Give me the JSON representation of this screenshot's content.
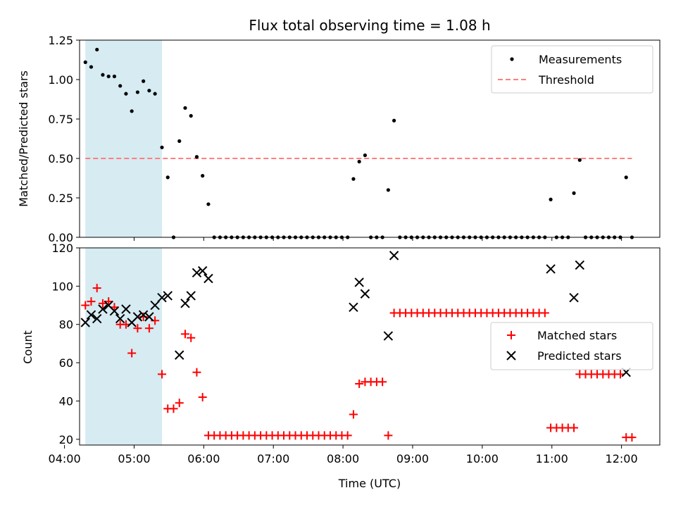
{
  "chart_data": [
    {
      "type": "scatter",
      "title": "Flux total observing time = 1.08 h",
      "xlabel": "",
      "ylabel": "Matched/Predicted stars",
      "ylim": [
        0,
        1.25
      ],
      "yticks": [
        "0.00",
        "0.25",
        "0.50",
        "0.75",
        "1.00",
        "1.25"
      ],
      "xlim": [
        "04:13",
        "12:33"
      ],
      "shaded_span": [
        "04:18",
        "05:24"
      ],
      "shade_color": "#add8e6",
      "legend": {
        "position": "top-right",
        "entries": [
          "Measurements",
          "Threshold"
        ]
      },
      "series": [
        {
          "name": "Measurements",
          "marker": "dot",
          "color": "#000000",
          "points": [
            [
              "04:18",
              1.11
            ],
            [
              "04:23",
              1.08
            ],
            [
              "04:28",
              1.19
            ],
            [
              "04:33",
              1.03
            ],
            [
              "04:38",
              1.02
            ],
            [
              "04:43",
              1.02
            ],
            [
              "04:48",
              0.96
            ],
            [
              "04:53",
              0.91
            ],
            [
              "04:58",
              0.8
            ],
            [
              "05:03",
              0.92
            ],
            [
              "05:08",
              0.99
            ],
            [
              "05:13",
              0.93
            ],
            [
              "05:18",
              0.91
            ],
            [
              "05:24",
              0.57
            ],
            [
              "05:29",
              0.38
            ],
            [
              "05:34",
              0.0
            ],
            [
              "05:39",
              0.61
            ],
            [
              "05:44",
              0.82
            ],
            [
              "05:49",
              0.77
            ],
            [
              "05:54",
              0.51
            ],
            [
              "05:59",
              0.39
            ],
            [
              "06:04",
              0.21
            ],
            [
              "06:09",
              0.0
            ],
            [
              "06:14",
              0.0
            ],
            [
              "06:19",
              0.0
            ],
            [
              "06:24",
              0.0
            ],
            [
              "06:29",
              0.0
            ],
            [
              "06:34",
              0.0
            ],
            [
              "06:39",
              0.0
            ],
            [
              "06:44",
              0.0
            ],
            [
              "06:49",
              0.0
            ],
            [
              "06:54",
              0.0
            ],
            [
              "06:59",
              0.0
            ],
            [
              "07:04",
              0.0
            ],
            [
              "07:09",
              0.0
            ],
            [
              "07:14",
              0.0
            ],
            [
              "07:19",
              0.0
            ],
            [
              "07:24",
              0.0
            ],
            [
              "07:29",
              0.0
            ],
            [
              "07:34",
              0.0
            ],
            [
              "07:39",
              0.0
            ],
            [
              "07:44",
              0.0
            ],
            [
              "07:49",
              0.0
            ],
            [
              "07:54",
              0.0
            ],
            [
              "07:59",
              0.0
            ],
            [
              "08:04",
              0.0
            ],
            [
              "08:09",
              0.37
            ],
            [
              "08:14",
              0.48
            ],
            [
              "08:19",
              0.52
            ],
            [
              "08:24",
              0.0
            ],
            [
              "08:29",
              0.0
            ],
            [
              "08:34",
              0.0
            ],
            [
              "08:39",
              0.3
            ],
            [
              "08:44",
              0.74
            ],
            [
              "08:49",
              0.0
            ],
            [
              "08:54",
              0.0
            ],
            [
              "08:59",
              0.0
            ],
            [
              "09:04",
              0.0
            ],
            [
              "09:09",
              0.0
            ],
            [
              "09:14",
              0.0
            ],
            [
              "09:19",
              0.0
            ],
            [
              "09:24",
              0.0
            ],
            [
              "09:29",
              0.0
            ],
            [
              "09:34",
              0.0
            ],
            [
              "09:39",
              0.0
            ],
            [
              "09:44",
              0.0
            ],
            [
              "09:49",
              0.0
            ],
            [
              "09:54",
              0.0
            ],
            [
              "09:59",
              0.0
            ],
            [
              "10:04",
              0.0
            ],
            [
              "10:09",
              0.0
            ],
            [
              "10:14",
              0.0
            ],
            [
              "10:19",
              0.0
            ],
            [
              "10:24",
              0.0
            ],
            [
              "10:29",
              0.0
            ],
            [
              "10:34",
              0.0
            ],
            [
              "10:39",
              0.0
            ],
            [
              "10:44",
              0.0
            ],
            [
              "10:49",
              0.0
            ],
            [
              "10:54",
              0.0
            ],
            [
              "10:59",
              0.24
            ],
            [
              "11:04",
              0.0
            ],
            [
              "11:09",
              0.0
            ],
            [
              "11:14",
              0.0
            ],
            [
              "11:19",
              0.28
            ],
            [
              "11:24",
              0.49
            ],
            [
              "11:29",
              0.0
            ],
            [
              "11:34",
              0.0
            ],
            [
              "11:39",
              0.0
            ],
            [
              "11:44",
              0.0
            ],
            [
              "11:49",
              0.0
            ],
            [
              "11:54",
              0.0
            ],
            [
              "11:59",
              0.0
            ],
            [
              "12:04",
              0.38
            ],
            [
              "12:09",
              0.0
            ]
          ]
        },
        {
          "name": "Threshold",
          "style": "dashed-line",
          "color": "#ff7f7f",
          "points": [
            [
              "04:18",
              0.5
            ],
            [
              "12:09",
              0.5
            ]
          ]
        }
      ]
    },
    {
      "type": "scatter",
      "title": "",
      "xlabel": "Time (UTC)",
      "ylabel": "Count",
      "ylim": [
        17,
        120
      ],
      "yticks": [
        "20",
        "40",
        "60",
        "80",
        "100",
        "120"
      ],
      "xticks": [
        "04:00",
        "05:00",
        "06:00",
        "07:00",
        "08:00",
        "09:00",
        "10:00",
        "11:00",
        "12:00"
      ],
      "xlim": [
        "04:13",
        "12:33"
      ],
      "shaded_span": [
        "04:18",
        "05:24"
      ],
      "shade_color": "#add8e6",
      "legend": {
        "position": "center-right",
        "entries": [
          "Matched stars",
          "Predicted stars"
        ]
      },
      "series": [
        {
          "name": "Matched stars",
          "marker": "plus",
          "color": "#ff0000",
          "points": [
            [
              "04:18",
              90
            ],
            [
              "04:23",
              92
            ],
            [
              "04:28",
              99
            ],
            [
              "04:33",
              91
            ],
            [
              "04:38",
              92
            ],
            [
              "04:43",
              89
            ],
            [
              "04:48",
              80
            ],
            [
              "04:53",
              80
            ],
            [
              "04:58",
              65
            ],
            [
              "05:03",
              78
            ],
            [
              "05:08",
              84
            ],
            [
              "05:13",
              78
            ],
            [
              "05:18",
              82
            ],
            [
              "05:24",
              54
            ],
            [
              "05:29",
              36
            ],
            [
              "05:34",
              36
            ],
            [
              "05:39",
              39
            ],
            [
              "05:44",
              75
            ],
            [
              "05:49",
              73
            ],
            [
              "05:54",
              55
            ],
            [
              "05:59",
              42
            ],
            [
              "06:04",
              22
            ],
            [
              "06:09",
              22
            ],
            [
              "06:14",
              22
            ],
            [
              "06:19",
              22
            ],
            [
              "06:24",
              22
            ],
            [
              "06:29",
              22
            ],
            [
              "06:34",
              22
            ],
            [
              "06:39",
              22
            ],
            [
              "06:44",
              22
            ],
            [
              "06:49",
              22
            ],
            [
              "06:54",
              22
            ],
            [
              "06:59",
              22
            ],
            [
              "07:04",
              22
            ],
            [
              "07:09",
              22
            ],
            [
              "07:14",
              22
            ],
            [
              "07:19",
              22
            ],
            [
              "07:24",
              22
            ],
            [
              "07:29",
              22
            ],
            [
              "07:34",
              22
            ],
            [
              "07:39",
              22
            ],
            [
              "07:44",
              22
            ],
            [
              "07:49",
              22
            ],
            [
              "07:54",
              22
            ],
            [
              "07:59",
              22
            ],
            [
              "08:04",
              22
            ],
            [
              "08:09",
              33
            ],
            [
              "08:14",
              49
            ],
            [
              "08:19",
              50
            ],
            [
              "08:24",
              50
            ],
            [
              "08:29",
              50
            ],
            [
              "08:34",
              50
            ],
            [
              "08:39",
              22
            ],
            [
              "08:44",
              86
            ],
            [
              "08:49",
              86
            ],
            [
              "08:54",
              86
            ],
            [
              "08:59",
              86
            ],
            [
              "09:04",
              86
            ],
            [
              "09:09",
              86
            ],
            [
              "09:14",
              86
            ],
            [
              "09:19",
              86
            ],
            [
              "09:24",
              86
            ],
            [
              "09:29",
              86
            ],
            [
              "09:34",
              86
            ],
            [
              "09:39",
              86
            ],
            [
              "09:44",
              86
            ],
            [
              "09:49",
              86
            ],
            [
              "09:54",
              86
            ],
            [
              "09:59",
              86
            ],
            [
              "10:04",
              86
            ],
            [
              "10:09",
              86
            ],
            [
              "10:14",
              86
            ],
            [
              "10:19",
              86
            ],
            [
              "10:24",
              86
            ],
            [
              "10:29",
              86
            ],
            [
              "10:34",
              86
            ],
            [
              "10:39",
              86
            ],
            [
              "10:44",
              86
            ],
            [
              "10:49",
              86
            ],
            [
              "10:54",
              86
            ],
            [
              "10:59",
              26
            ],
            [
              "11:04",
              26
            ],
            [
              "11:09",
              26
            ],
            [
              "11:14",
              26
            ],
            [
              "11:19",
              26
            ],
            [
              "11:24",
              54
            ],
            [
              "11:29",
              54
            ],
            [
              "11:34",
              54
            ],
            [
              "11:39",
              54
            ],
            [
              "11:44",
              54
            ],
            [
              "11:49",
              54
            ],
            [
              "11:54",
              54
            ],
            [
              "11:59",
              54
            ],
            [
              "12:04",
              21
            ],
            [
              "12:09",
              21
            ]
          ]
        },
        {
          "name": "Predicted stars",
          "marker": "x",
          "color": "#000000",
          "points": [
            [
              "04:18",
              81
            ],
            [
              "04:23",
              85
            ],
            [
              "04:28",
              83
            ],
            [
              "04:33",
              88
            ],
            [
              "04:38",
              90
            ],
            [
              "04:43",
              87
            ],
            [
              "04:48",
              83
            ],
            [
              "04:53",
              88
            ],
            [
              "04:58",
              81
            ],
            [
              "05:03",
              84
            ],
            [
              "05:08",
              85
            ],
            [
              "05:13",
              84
            ],
            [
              "05:18",
              90
            ],
            [
              "05:24",
              94
            ],
            [
              "05:29",
              95
            ],
            [
              "05:39",
              64
            ],
            [
              "05:44",
              91
            ],
            [
              "05:49",
              95
            ],
            [
              "05:54",
              107
            ],
            [
              "05:59",
              108
            ],
            [
              "06:04",
              104
            ],
            [
              "08:09",
              89
            ],
            [
              "08:14",
              102
            ],
            [
              "08:19",
              96
            ],
            [
              "08:39",
              74
            ],
            [
              "08:44",
              116
            ],
            [
              "10:59",
              109
            ],
            [
              "11:19",
              94
            ],
            [
              "11:24",
              111
            ],
            [
              "12:04",
              55
            ]
          ]
        }
      ]
    }
  ]
}
